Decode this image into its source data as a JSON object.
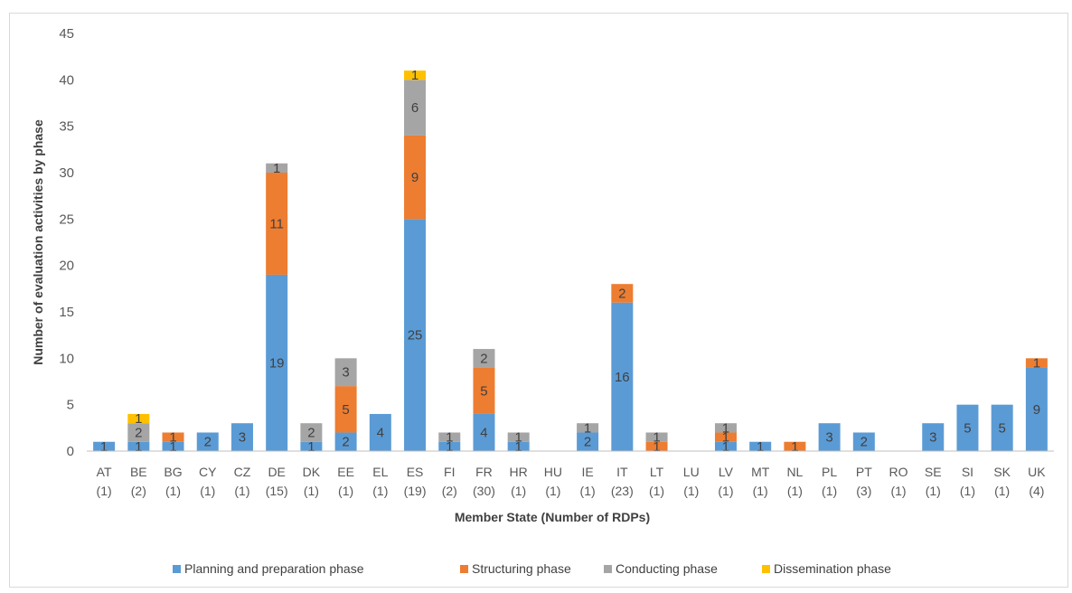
{
  "chart_data": {
    "type": "bar",
    "stacked": true,
    "xlabel": "Member State  (Number of RDPs)",
    "ylabel": "Number of evaluation activities by phase",
    "ylim": [
      0,
      45
    ],
    "yticks": [
      0,
      5,
      10,
      15,
      20,
      25,
      30,
      35,
      40,
      45
    ],
    "grid": false,
    "legend_position": "bottom",
    "categories": [
      "AT",
      "BE",
      "BG",
      "CY",
      "CZ",
      "DE",
      "DK",
      "EE",
      "EL",
      "ES",
      "FI",
      "FR",
      "HR",
      "HU",
      "IE",
      "IT",
      "LT",
      "LU",
      "LV",
      "MT",
      "NL",
      "PL",
      "PT",
      "RO",
      "SE",
      "SI",
      "SK",
      "UK"
    ],
    "category_sublabels": [
      "(1)",
      "(2)",
      "(1)",
      "(1)",
      "(1)",
      "(15)",
      "(1)",
      "(1)",
      "(1)",
      "(19)",
      "(2)",
      "(30)",
      "(1)",
      "(1)",
      "(1)",
      "(23)",
      "(1)",
      "(1)",
      "(1)",
      "(1)",
      "(1)",
      "(1)",
      "(3)",
      "(1)",
      "(1)",
      "(1)",
      "(1)",
      "(4)"
    ],
    "series": [
      {
        "name": "Planning and preparation phase",
        "color": "#5b9bd5",
        "values": [
          1,
          1,
          1,
          2,
          3,
          19,
          1,
          2,
          4,
          25,
          1,
          4,
          1,
          0,
          2,
          16,
          0,
          0,
          1,
          1,
          0,
          3,
          2,
          0,
          3,
          5,
          5,
          9
        ]
      },
      {
        "name": "Structuring phase",
        "color": "#ed7d31",
        "values": [
          0,
          0,
          1,
          0,
          0,
          11,
          0,
          5,
          0,
          9,
          0,
          5,
          0,
          0,
          0,
          2,
          1,
          0,
          1,
          0,
          1,
          0,
          0,
          0,
          0,
          0,
          0,
          1
        ]
      },
      {
        "name": "Conducting phase",
        "color": "#a5a5a5",
        "values": [
          0,
          2,
          0,
          0,
          0,
          1,
          2,
          3,
          0,
          6,
          1,
          2,
          1,
          0,
          1,
          0,
          1,
          0,
          1,
          0,
          0,
          0,
          0,
          0,
          0,
          0,
          0,
          0
        ]
      },
      {
        "name": "Dissemination phase",
        "color": "#ffc000",
        "values": [
          0,
          1,
          0,
          0,
          0,
          0,
          0,
          0,
          0,
          1,
          0,
          0,
          0,
          0,
          0,
          0,
          0,
          0,
          0,
          0,
          0,
          0,
          0,
          0,
          0,
          0,
          0,
          0
        ]
      }
    ]
  }
}
